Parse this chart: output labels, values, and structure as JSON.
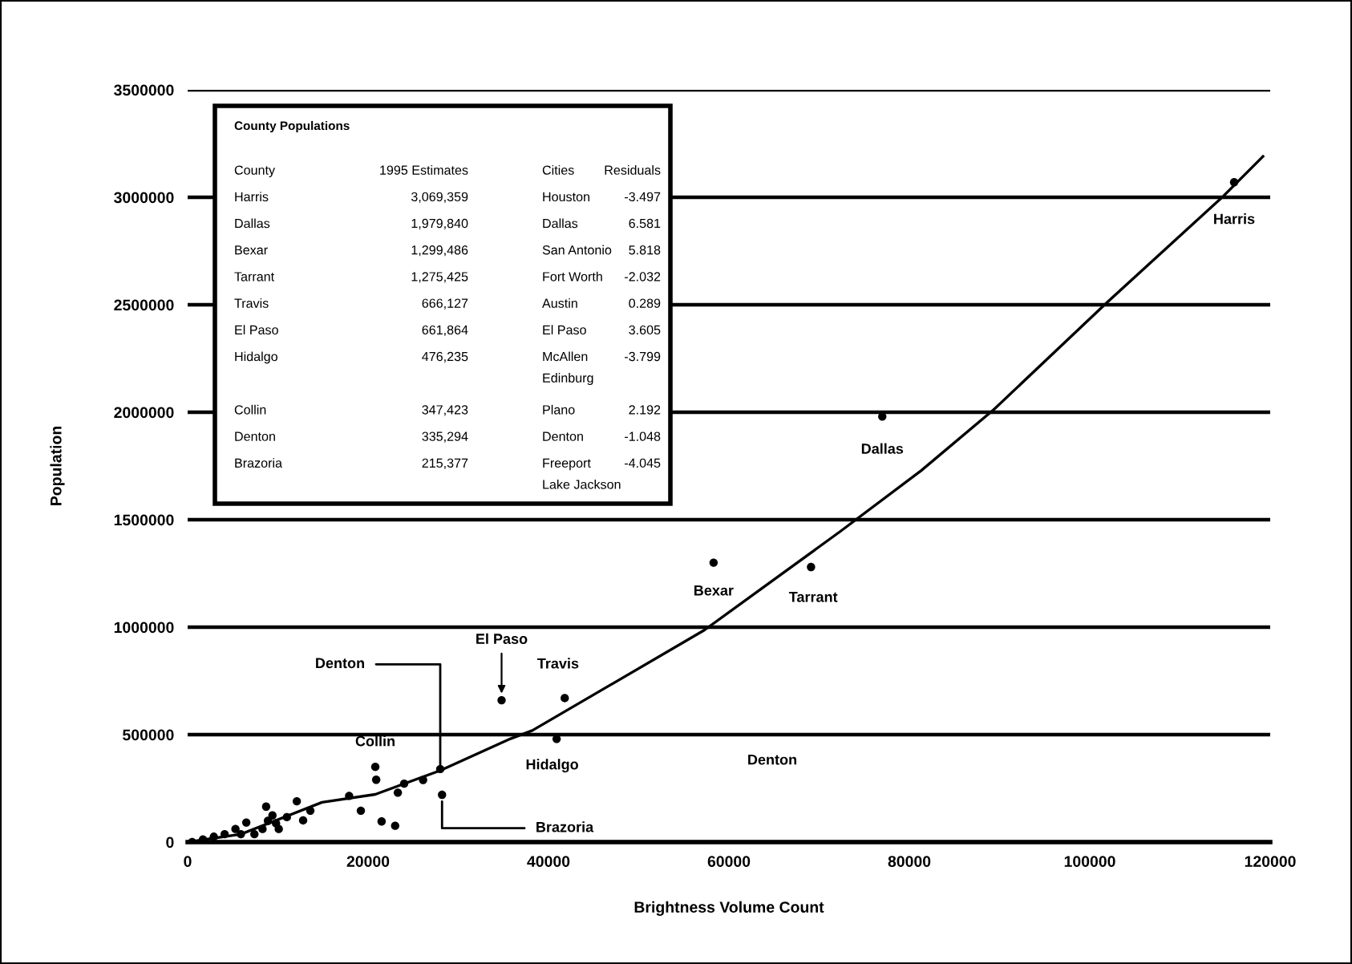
{
  "chart_data": {
    "type": "scatter",
    "xlabel": "Brightness Volume Count",
    "ylabel": "Population",
    "xlim": [
      0,
      120000
    ],
    "xticks": [
      0,
      20000,
      40000,
      60000,
      80000,
      100000,
      120000
    ],
    "ylim": [
      0,
      3500000
    ],
    "yticks": [
      0,
      500000,
      1000000,
      1500000,
      2000000,
      2500000,
      3000000,
      3500000
    ],
    "grid": "y",
    "marker": "circle",
    "series": [
      {
        "color": "#000000",
        "x": [
          116000,
          77000,
          58300,
          69100,
          41800,
          40900,
          34800,
          28000,
          20800,
          20900,
          28200,
          17900,
          19200,
          21500,
          23000,
          23300,
          24000,
          26100,
          13600,
          12100,
          8700,
          6500,
          9400,
          11000,
          12800,
          10100,
          8300,
          5300,
          4100,
          2900,
          1700,
          500,
          7400,
          8900,
          5900,
          9800
        ],
        "values": [
          3070000,
          1980000,
          1300000,
          1280000,
          670000,
          480000,
          660000,
          340000,
          350000,
          290000,
          220000,
          215000,
          146000,
          96000,
          76000,
          230000,
          272000,
          289000,
          146000,
          190000,
          165000,
          91000,
          124000,
          116000,
          101000,
          61000,
          61000,
          61000,
          37000,
          25000,
          12000,
          0,
          37000,
          99000,
          37000,
          87000
        ]
      },
      {
        "type": "line",
        "color": "#000000",
        "marker": "none",
        "x": [
          0,
          5900,
          14900,
          20800,
          28000,
          35800,
          38200,
          57300,
          72300,
          81300,
          89300,
          101900,
          114800,
          119200
        ],
        "values": [
          0,
          37000,
          185000,
          222000,
          333000,
          481000,
          519000,
          987000,
          1444000,
          1728000,
          2010000,
          2510000,
          3005000,
          3190000
        ]
      }
    ],
    "annotations": [
      {
        "text": "Harris",
        "x": 116000,
        "y": 3070000
      },
      {
        "text": "Dallas",
        "x": 77000,
        "y": 1980000
      },
      {
        "text": "Bexar",
        "x": 58300,
        "y": 1300000
      },
      {
        "text": "Tarrant",
        "x": 69100,
        "y": 1280000
      },
      {
        "text": "Travis",
        "x": 41800,
        "y": 670000
      },
      {
        "text": "Hidalgo",
        "x": 40900,
        "y": 480000
      },
      {
        "text": "El Paso",
        "x": 34800,
        "y": 660000
      },
      {
        "text": "Denton",
        "x": 28000,
        "y": 340000
      },
      {
        "text": "Collin",
        "x": 20800,
        "y": 350000
      },
      {
        "text": "Brazoria",
        "x": 28200,
        "y": 220000
      },
      "Denton",
      "County Populations",
      "County",
      "1995 Estimates",
      "Cities",
      "Residuals",
      "Harris",
      "3,069,359",
      "Houston",
      "-3.497",
      "Dallas",
      "1,979,840",
      "Dallas",
      "6.581",
      "Bexar",
      "1,299,486",
      "San Antonio",
      "5.818",
      "Tarrant",
      "1,275,425",
      "Fort Worth",
      "-2.032",
      "Travis",
      "666,127",
      "Austin",
      "0.289",
      "El Paso",
      "661,864",
      "El Paso",
      "3.605",
      "Hidalgo",
      "476,235",
      "McAllen\nEdinburg",
      "-3.799",
      "Collin",
      "347,423",
      "Plano",
      "2.192",
      "Denton",
      "335,294",
      "Denton",
      "-1.048",
      "Brazoria",
      "215,377",
      "Freeport\nLake Jackson",
      "-4.045"
    ]
  }
}
